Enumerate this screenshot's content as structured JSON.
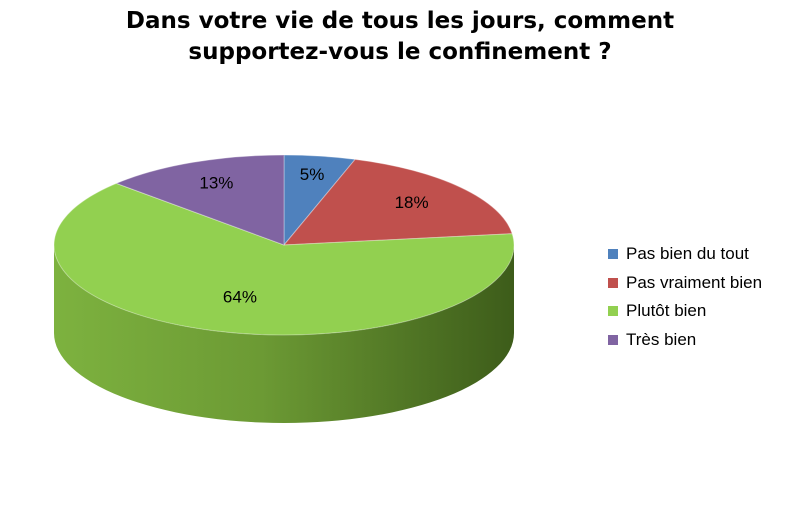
{
  "title": {
    "line1": "Dans votre vie de tous les jours, comment",
    "line2": "supportez-vous le confinement ?"
  },
  "chart_data": {
    "type": "pie",
    "title": "Dans votre vie de tous les jours, comment supportez-vous le confinement ?",
    "categories": [
      "Pas bien du tout",
      "Pas vraiment bien",
      "Plutôt bien",
      "Très bien"
    ],
    "values": [
      5,
      18,
      64,
      13
    ],
    "labels": [
      "5%",
      "18%",
      "64%",
      "13%"
    ],
    "colors": [
      "#4F81BD",
      "#C0504D",
      "#92D050",
      "#8064A2"
    ],
    "style": "3d",
    "legend": "right"
  }
}
